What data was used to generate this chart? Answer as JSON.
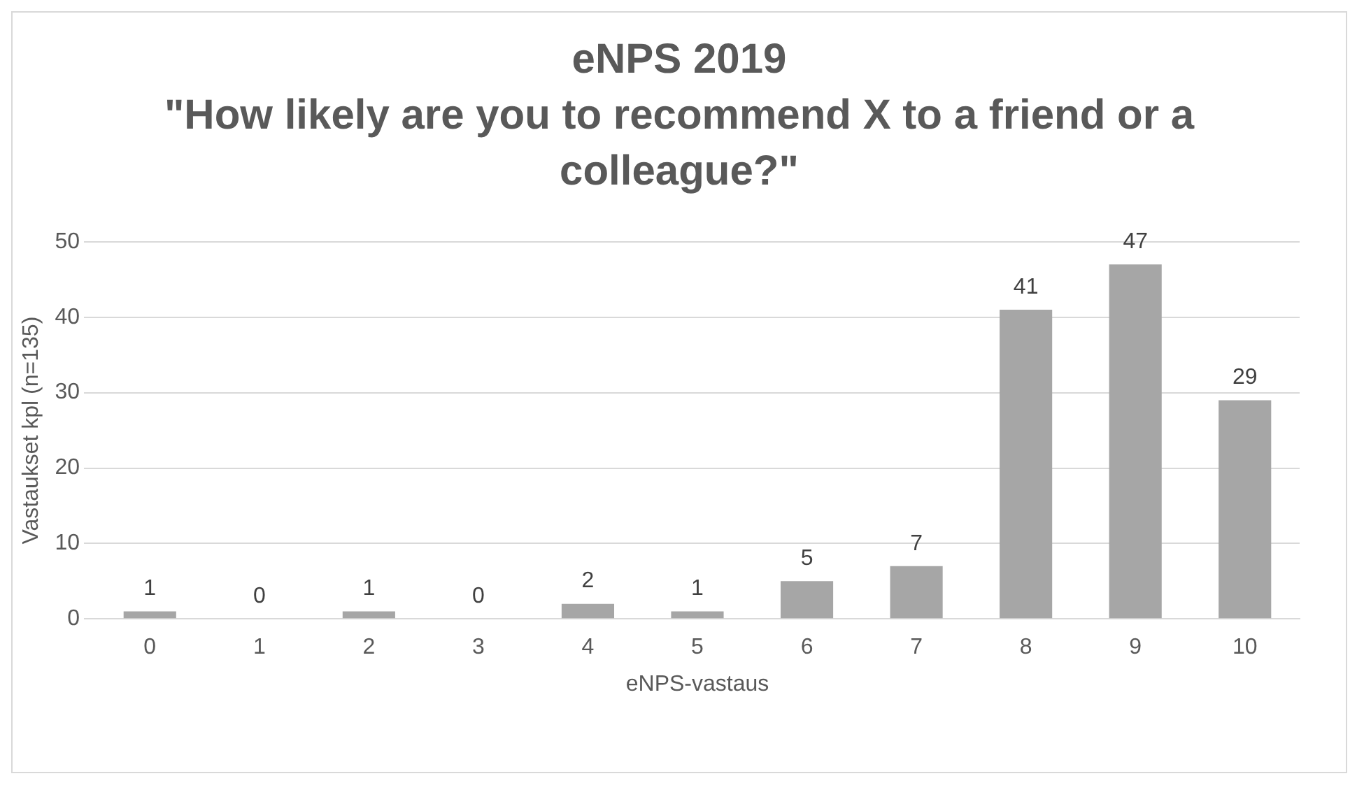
{
  "chart_data": {
    "type": "bar",
    "title": "eNPS 2019",
    "subtitle": "\"How likely are you to recommend X to a friend or a colleague?\"",
    "xlabel": "eNPS-vastaus",
    "ylabel": "Vastaukset kpl (n=135)",
    "categories": [
      "0",
      "1",
      "2",
      "3",
      "4",
      "5",
      "6",
      "7",
      "8",
      "9",
      "10"
    ],
    "values": [
      1,
      0,
      1,
      0,
      2,
      1,
      5,
      7,
      41,
      47,
      29
    ],
    "color": "#a6a6a6",
    "ylim": [
      0,
      50
    ],
    "yticks": [
      0,
      10,
      20,
      30,
      40,
      50
    ],
    "grid": "y",
    "legend": false,
    "data_labels": true
  }
}
